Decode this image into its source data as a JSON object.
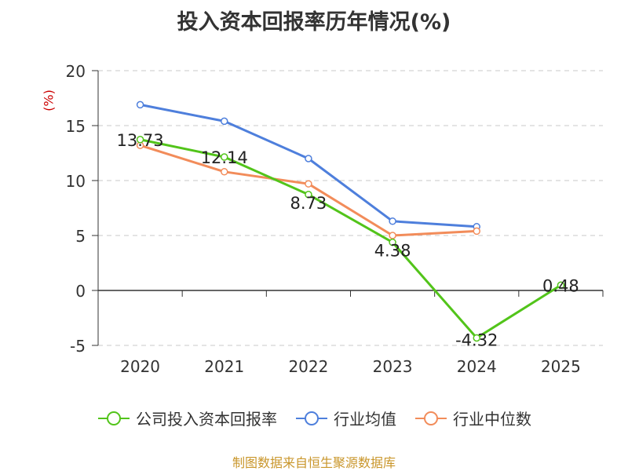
{
  "title": "投入资本回报率历年情况(%)",
  "unit_label": "(%)",
  "source": "制图数据来自恒生聚源数据库",
  "chart_data": {
    "type": "line",
    "title": "投入资本回报率历年情况(%)",
    "ylabel": "(%)",
    "xlabel": "",
    "categories": [
      "2020",
      "2021",
      "2022",
      "2023",
      "2024",
      "2025"
    ],
    "ylim": [
      -5,
      20
    ],
    "yticks": [
      -5,
      0,
      5,
      10,
      15,
      20
    ],
    "grid": true,
    "legend_position": "bottom",
    "series": [
      {
        "name": "公司投入资本回报率",
        "color": "#52c41a",
        "values": [
          13.73,
          12.14,
          8.73,
          4.38,
          -4.32,
          0.48
        ],
        "labels": [
          "13.73",
          "12.14",
          "8.73",
          "4.38",
          "-4.32",
          "0.48"
        ]
      },
      {
        "name": "行业均值",
        "color": "#4e7fdc",
        "values": [
          16.9,
          15.4,
          12.0,
          6.3,
          5.8,
          null
        ]
      },
      {
        "name": "行业中位数",
        "color": "#f28c5a",
        "values": [
          13.2,
          10.8,
          9.7,
          5.0,
          5.4,
          null
        ]
      }
    ]
  }
}
